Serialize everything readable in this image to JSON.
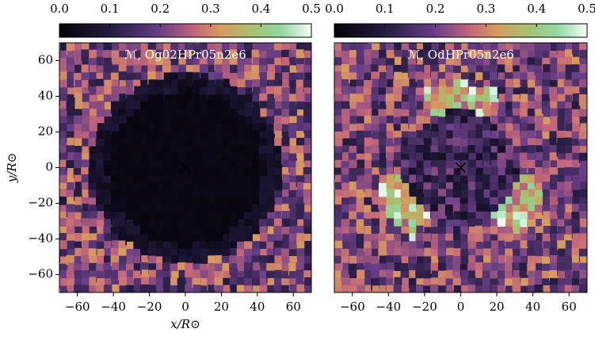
{
  "chart_data": [
    {
      "type": "heatmap",
      "title": "ℳ, Og02HPr05n2e6",
      "xlabel": "x/R⊙",
      "ylabel": "y/R⊙",
      "xlim": [
        -70,
        70
      ],
      "ylim": [
        -70,
        70
      ],
      "xticks": [
        {
          "value": -60,
          "label": "−60"
        },
        {
          "value": -40,
          "label": "−40"
        },
        {
          "value": -20,
          "label": "−20"
        },
        0,
        20,
        40,
        60
      ],
      "yticks": [
        {
          "value": -60,
          "label": "−60"
        },
        {
          "value": -40,
          "label": "−40"
        },
        {
          "value": -20,
          "label": "−20"
        },
        0,
        20,
        40,
        60
      ],
      "clim": [
        0,
        0.5
      ],
      "cticks": [
        {
          "value": 0,
          "label": "0.0"
        },
        0.1,
        0.2,
        0.3,
        0.4,
        0.5
      ]
    },
    {
      "type": "heatmap",
      "title": "ℳ, OdHPr05n2e6",
      "xlim": [
        -70,
        70
      ],
      "ylim": [
        -70,
        70
      ],
      "xticks": [
        {
          "value": -60,
          "label": "−60"
        },
        {
          "value": -40,
          "label": "−40"
        },
        {
          "value": -20,
          "label": "−20"
        },
        0,
        20,
        40,
        60
      ],
      "clim": [
        0,
        0.5
      ],
      "cticks": [
        {
          "value": 0,
          "label": "0.0"
        },
        0.1,
        0.2,
        0.3,
        0.4,
        0.5
      ]
    }
  ]
}
